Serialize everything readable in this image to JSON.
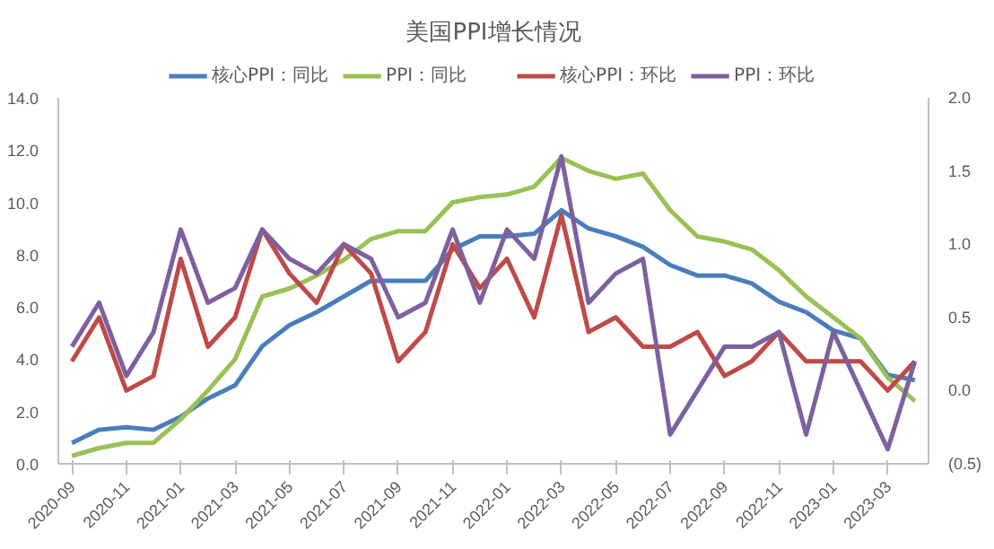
{
  "chart_data": {
    "type": "line",
    "title": "美国PPI增长情况",
    "categories": [
      "2020-09",
      null,
      "2020-11",
      null,
      "2021-01",
      null,
      "2021-03",
      null,
      "2021-05",
      null,
      "2021-07",
      null,
      "2021-09",
      null,
      "2021-11",
      null,
      "2022-01",
      null,
      "2022-03",
      null,
      "2022-05",
      null,
      "2022-07",
      null,
      "2022-09",
      null,
      "2022-11",
      null,
      "2023-01",
      null,
      "2023-03",
      null
    ],
    "series": [
      {
        "name": "核心PPI：同比",
        "color": "#4a7ebb",
        "values": [
          0.8,
          1.3,
          1.4,
          1.3,
          1.8,
          2.5,
          3.0,
          4.5,
          5.3,
          5.8,
          6.4,
          7.0,
          7.0,
          7.0,
          8.2,
          8.7,
          8.7,
          8.8,
          9.7,
          9.0,
          8.7,
          8.3,
          7.6,
          7.2,
          7.2,
          6.9,
          6.2,
          5.8,
          5.1,
          4.8,
          3.4,
          3.2
        ]
      },
      {
        "name": "PPI：同比",
        "color": "#98c154",
        "values": [
          0.3,
          0.6,
          0.8,
          0.8,
          1.7,
          2.8,
          4.0,
          6.4,
          6.7,
          7.2,
          7.8,
          8.6,
          8.9,
          8.9,
          10.0,
          10.2,
          10.3,
          10.6,
          11.7,
          11.2,
          10.9,
          11.1,
          9.7,
          8.7,
          8.5,
          8.2,
          7.4,
          6.4,
          5.6,
          4.8,
          3.3,
          2.4
        ]
      },
      {
        "name": "核心PPI：环比",
        "color": "#be4b48",
        "axis": "y2",
        "values": [
          0.2,
          0.5,
          0.0,
          0.1,
          0.9,
          0.3,
          0.5,
          1.1,
          0.8,
          0.6,
          1.0,
          0.8,
          0.2,
          0.4,
          1.0,
          0.7,
          0.9,
          0.5,
          1.2,
          0.4,
          0.5,
          0.3,
          0.3,
          0.4,
          0.1,
          0.2,
          0.4,
          0.2,
          0.2,
          0.2,
          0.0,
          0.2
        ]
      },
      {
        "name": "PPI：环比",
        "color": "#7d60a0",
        "axis": "y2",
        "values": [
          0.3,
          0.6,
          0.1,
          0.4,
          1.1,
          0.6,
          0.7,
          1.1,
          0.9,
          0.8,
          1.0,
          0.9,
          0.5,
          0.6,
          1.1,
          0.6,
          1.1,
          0.9,
          1.6,
          0.6,
          0.8,
          0.9,
          -0.3,
          0.0,
          0.3,
          0.3,
          0.4,
          -0.3,
          0.4,
          0.0,
          -0.4,
          0.2
        ]
      }
    ],
    "ylim": [
      0,
      14
    ],
    "yticks": [
      {
        "value": 0,
        "label": "0.0"
      },
      {
        "value": 2,
        "label": "2.0"
      },
      {
        "value": 4,
        "label": "4.0"
      },
      {
        "value": 6,
        "label": "6.0"
      },
      {
        "value": 8,
        "label": "8.0"
      },
      {
        "value": 10,
        "label": "10.0"
      },
      {
        "value": 12,
        "label": "12.0"
      },
      {
        "value": 14,
        "label": "14.0"
      }
    ],
    "y2lim": [
      -0.5,
      2.0
    ],
    "y2ticks": [
      {
        "value": -0.5,
        "label": "(0.5)"
      },
      {
        "value": 0,
        "label": "0.0"
      },
      {
        "value": 0.5,
        "label": "0.5"
      },
      {
        "value": 1,
        "label": "1.0"
      },
      {
        "value": 1.5,
        "label": "1.5"
      },
      {
        "value": 2,
        "label": "2.0"
      }
    ],
    "grid": false,
    "legend": "top",
    "marker": "none",
    "line_style": "solid"
  }
}
